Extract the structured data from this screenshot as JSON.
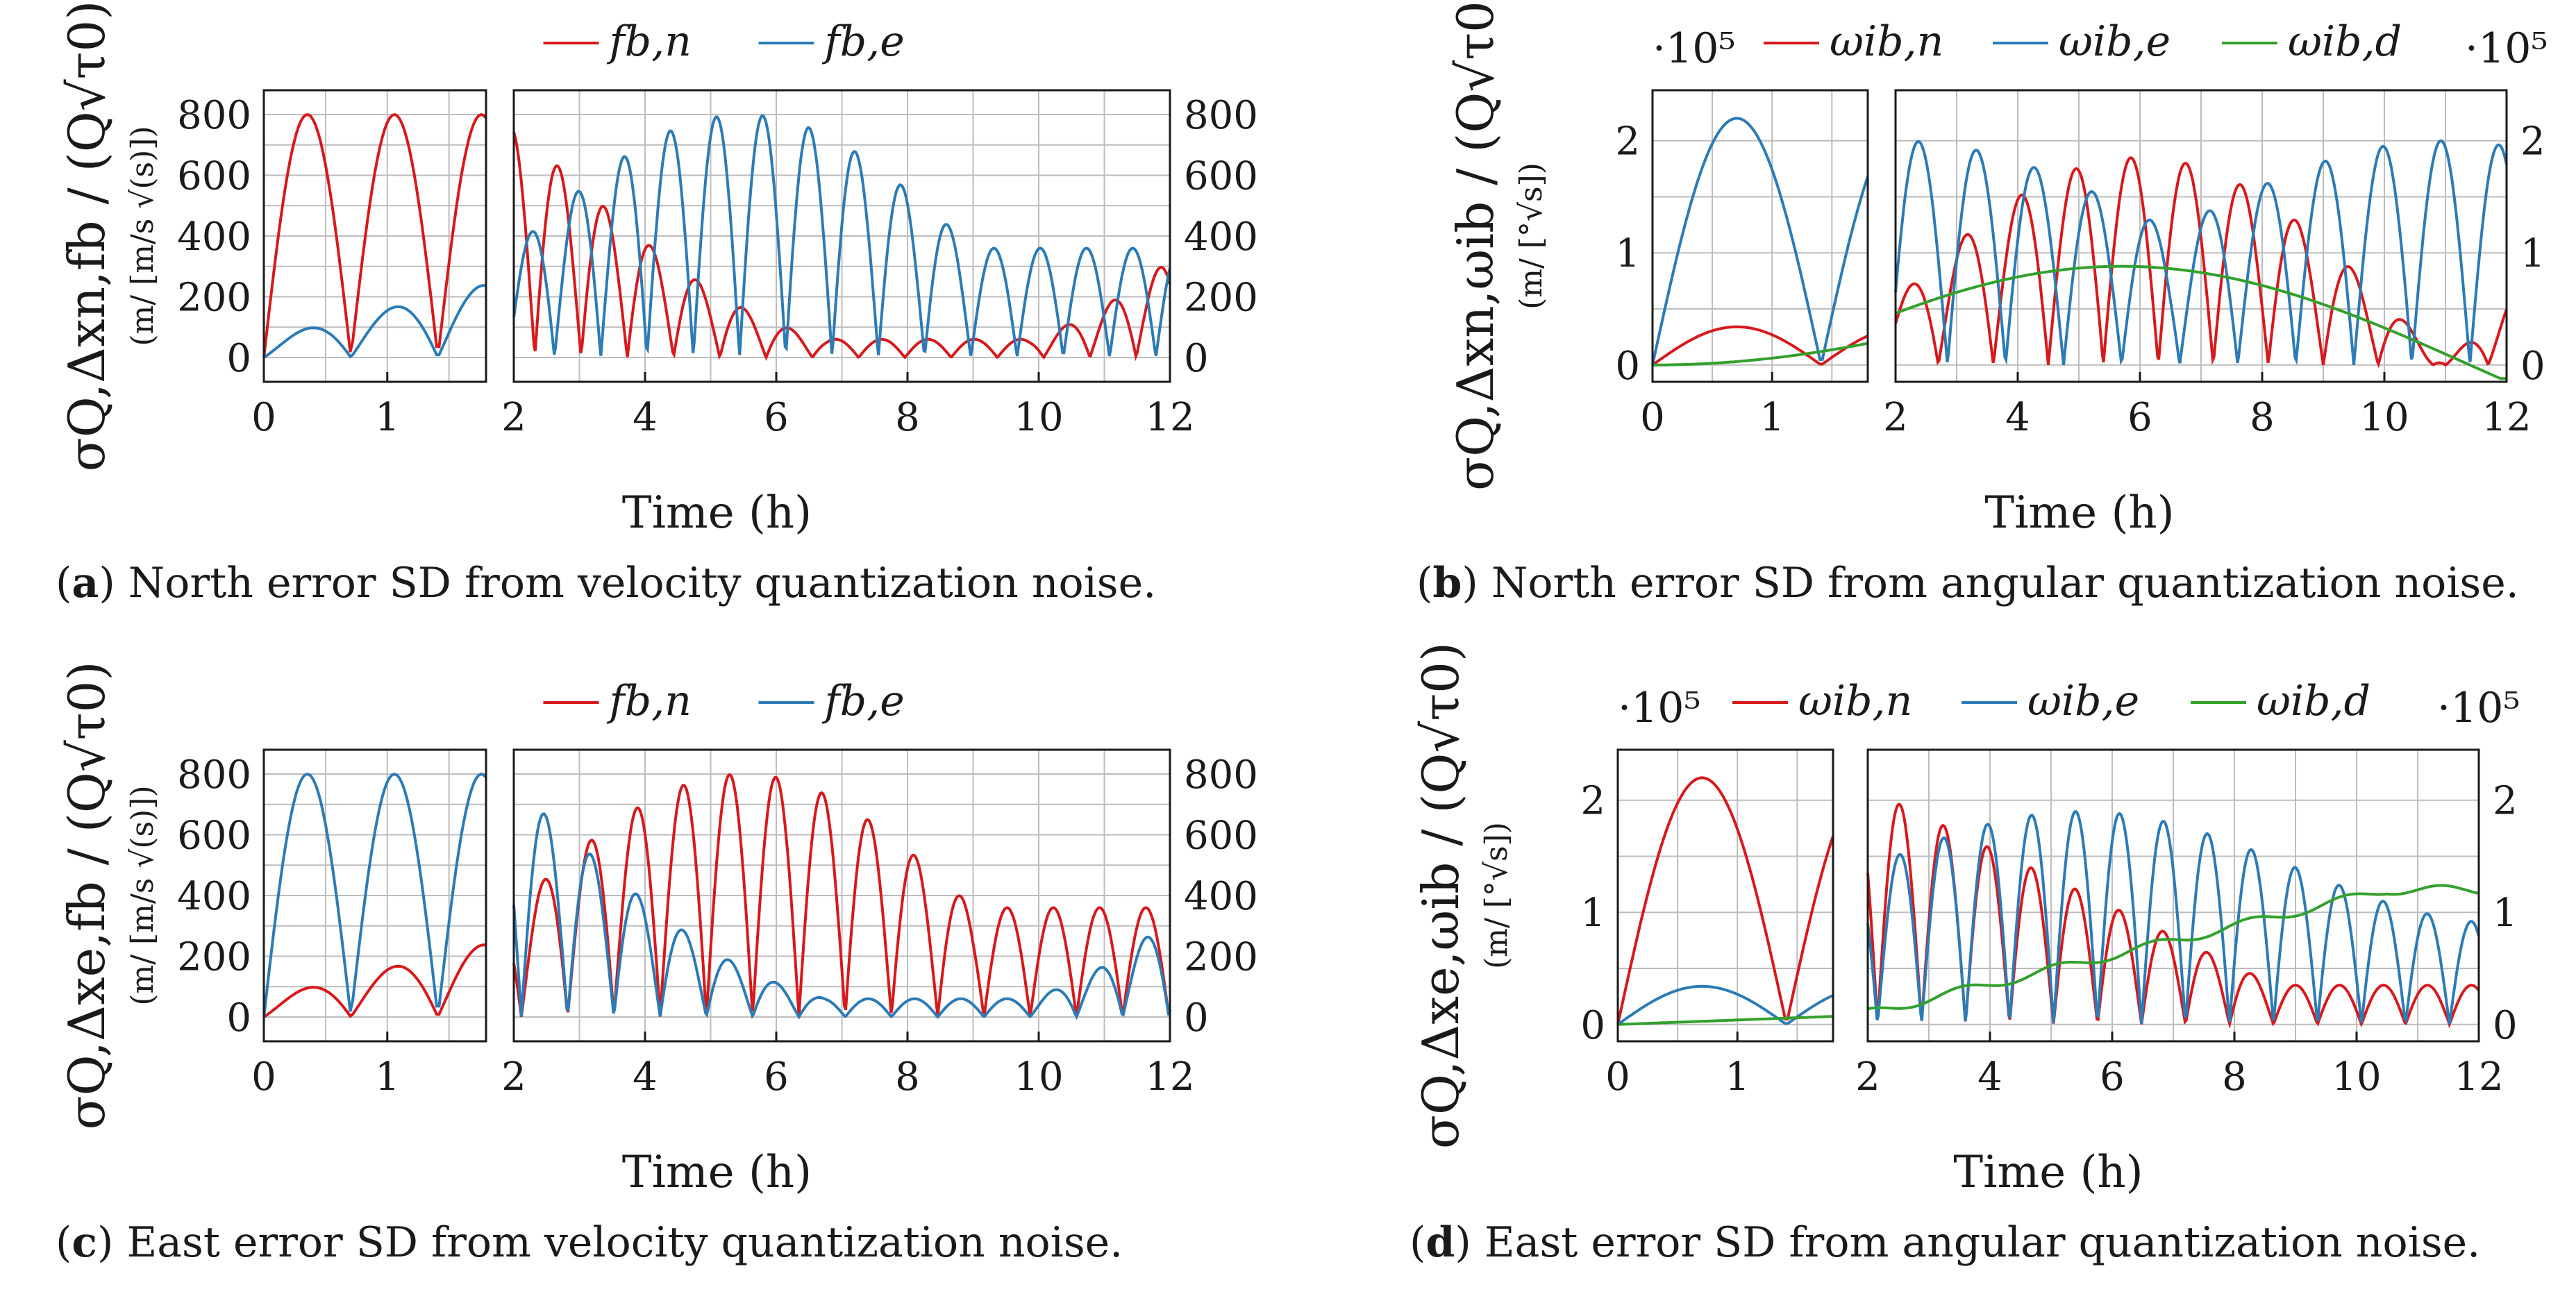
{
  "colors": {
    "red": "#d7191c",
    "blue": "#2c7bb6",
    "green": "#33a02c"
  },
  "chart_data": [
    {
      "id": "a",
      "type": "line",
      "caption_letter": "a",
      "caption_text": " North error SD from velocity quantization noise.",
      "xlabel": "Time (h)",
      "ylabel_main": "σQ,Δxn,fb / (Q√τ0)",
      "ylabel_units": "(m/ [m/s √(s)])",
      "legend": [
        "fb,n",
        "fb,e"
      ],
      "scale_note": "",
      "left_xlim": [
        0,
        1.8
      ],
      "left_xticks": [
        "0",
        "1"
      ],
      "right_xlim": [
        2,
        12
      ],
      "right_xticks": [
        "2",
        "4",
        "6",
        "8",
        "10",
        "12"
      ],
      "ylim": [
        -80,
        880
      ],
      "yticks": [
        "0",
        "200",
        "400",
        "600",
        "800"
      ],
      "series": [
        {
          "name": "fb,n",
          "color": "red",
          "amp1": 800,
          "period": 1.41,
          "decay": 1.0,
          "decay_min": 0.06,
          "phase2": 0.5
        },
        {
          "name": "fb,e",
          "color": "blue",
          "amp1": 60,
          "period": 1.41,
          "grow": 1.0,
          "grow_max": 800,
          "phase2": 0.2
        }
      ]
    },
    {
      "id": "b",
      "type": "line",
      "caption_letter": "b",
      "caption_text": " North error SD from angular quantization noise.",
      "xlabel": "Time (h)",
      "ylabel_main": "σQ,Δxn,ωib / (Q√τ0)",
      "ylabel_units": "(m/ [°√s])",
      "legend": [
        "ωib,n",
        "ωib,e",
        "ωib,d"
      ],
      "scale_note": "·10⁵",
      "left_xlim": [
        0,
        1.8
      ],
      "left_xticks": [
        "0",
        "1"
      ],
      "right_xlim": [
        2,
        12
      ],
      "right_xticks": [
        "2",
        "4",
        "6",
        "8",
        "10",
        "12"
      ],
      "ylim": [
        -0.15,
        2.45
      ],
      "yticks": [
        "0",
        "1",
        "2"
      ],
      "series": [
        {
          "name": "ωib,n",
          "color": "red",
          "amp1": 0.32,
          "period": 1.41,
          "grow_max": 1.8
        },
        {
          "name": "ωib,e",
          "color": "blue",
          "amp1": 2.2,
          "period": 1.41,
          "mid_dip": 0.4
        },
        {
          "name": "ωib,d",
          "color": "green",
          "amp1": 0.37,
          "trend": "hump",
          "peak": 0.88
        }
      ]
    },
    {
      "id": "c",
      "type": "line",
      "caption_letter": "c",
      "caption_text": " East error SD from velocity quantization noise.",
      "xlabel": "Time (h)",
      "ylabel_main": "σQ,Δxe,fb / (Q√τ0)",
      "ylabel_units": "(m/ [m/s √(s)])",
      "legend": [
        "fb,n",
        "fb,e"
      ],
      "scale_note": "",
      "left_xlim": [
        0,
        1.8
      ],
      "left_xticks": [
        "0",
        "1"
      ],
      "right_xlim": [
        2,
        12
      ],
      "right_xticks": [
        "2",
        "4",
        "6",
        "8",
        "10",
        "12"
      ],
      "ylim": [
        -80,
        880
      ],
      "yticks": [
        "0",
        "200",
        "400",
        "600",
        "800"
      ],
      "series": [
        {
          "name": "fb,n",
          "color": "red",
          "amp1": 60,
          "period": 1.41,
          "grow_max": 800
        },
        {
          "name": "fb,e",
          "color": "blue",
          "amp1": 800,
          "period": 1.41,
          "decay_min": 0.06
        }
      ]
    },
    {
      "id": "d",
      "type": "line",
      "caption_letter": "d",
      "caption_text": " East error SD from angular quantization noise.",
      "xlabel": "Time (h)",
      "ylabel_main": "σQ,Δxe,ωib / (Q√τ0)",
      "ylabel_units": "(m/ [°√s])",
      "legend": [
        "ωib,n",
        "ωib,e",
        "ωib,d"
      ],
      "scale_note": "·10⁵",
      "left_xlim": [
        0,
        1.8
      ],
      "left_xticks": [
        "0",
        "1"
      ],
      "right_xlim": [
        2,
        12
      ],
      "right_xticks": [
        "2",
        "4",
        "6",
        "8",
        "10",
        "12"
      ],
      "ylim": [
        -0.15,
        2.45
      ],
      "yticks": [
        "0",
        "1",
        "2"
      ],
      "series": [
        {
          "name": "ωib,n",
          "color": "red",
          "amp1": 2.2,
          "period": 1.41,
          "decay_min": 0.3
        },
        {
          "name": "ωib,e",
          "color": "blue",
          "amp1": 0.32,
          "period": 1.41,
          "grow_max": 1.9
        },
        {
          "name": "ωib,d",
          "color": "green",
          "amp1": 0.08,
          "trend": "rise",
          "peak": 1.2
        }
      ]
    }
  ]
}
